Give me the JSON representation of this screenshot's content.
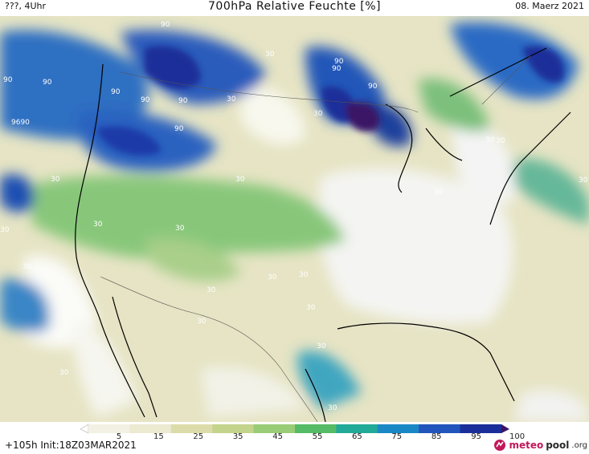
{
  "header": {
    "left": "???, 4Uhr",
    "title": "700hPa Relative Feuchte [%]",
    "date": "08. Maerz 2021"
  },
  "footer": {
    "run": "+105h  Init:18Z03MAR2021",
    "brand_part1": "meteo",
    "brand_part2": "pool",
    "brand_part3": ".org"
  },
  "legend": {
    "labels": [
      "5",
      "15",
      "25",
      "35",
      "45",
      "55",
      "65",
      "75",
      "85",
      "95",
      "100"
    ],
    "colors": [
      "#ffffff",
      "#f3f1e4",
      "#ecead0",
      "#dcdcaa",
      "#c3d48c",
      "#99cc77",
      "#55bb66",
      "#22aa99",
      "#1a88c4",
      "#2255bb",
      "#1a2f99",
      "#3a1466"
    ]
  },
  "map": {
    "contour_labels": [
      {
        "text": "90"
      },
      {
        "text": "90"
      },
      {
        "text": "90"
      },
      {
        "text": "90"
      },
      {
        "text": "90"
      },
      {
        "text": "90"
      },
      {
        "text": "90"
      },
      {
        "text": "90"
      },
      {
        "text": "90"
      },
      {
        "text": "90"
      },
      {
        "text": "9690"
      },
      {
        "text": "30"
      },
      {
        "text": "30"
      },
      {
        "text": "30"
      },
      {
        "text": "30"
      },
      {
        "text": "30"
      },
      {
        "text": "30"
      },
      {
        "text": "30"
      },
      {
        "text": "30"
      },
      {
        "text": "30"
      },
      {
        "text": "30"
      },
      {
        "text": "30"
      },
      {
        "text": "30"
      },
      {
        "text": "30"
      },
      {
        "text": "30"
      },
      {
        "text": "30"
      },
      {
        "text": "30"
      },
      {
        "text": "30"
      },
      {
        "text": "30"
      },
      {
        "text": "30"
      },
      {
        "text": "30"
      },
      {
        "text": "30"
      }
    ]
  }
}
